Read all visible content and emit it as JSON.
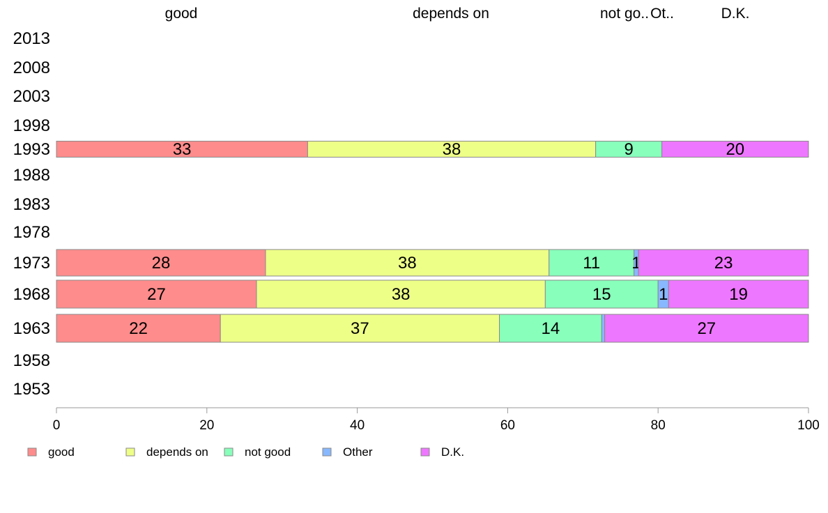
{
  "chart_data": {
    "type": "bar",
    "orientation": "horizontal",
    "stacked": true,
    "categories": [
      "2013",
      "2008",
      "2003",
      "1998",
      "1993",
      "1988",
      "1983",
      "1978",
      "1973",
      "1968",
      "1963",
      "1958",
      "1953"
    ],
    "column_headers": [
      "good",
      "depends on",
      "not go..",
      "Ot..",
      "D.K."
    ],
    "series": [
      {
        "name": "good",
        "color": "#ff8c8c",
        "values": [
          null,
          null,
          null,
          null,
          33.4,
          null,
          null,
          null,
          27.8,
          26.6,
          21.8,
          null,
          null
        ],
        "labels": [
          "",
          "",
          "",
          "",
          "33",
          "",
          "",
          "",
          "28",
          "27",
          "22",
          "",
          ""
        ]
      },
      {
        "name": "depends on",
        "color": "#eeff88",
        "values": [
          null,
          null,
          null,
          null,
          38.3,
          null,
          null,
          null,
          37.7,
          38.4,
          37.1,
          null,
          null
        ],
        "labels": [
          "",
          "",
          "",
          "",
          "38",
          "",
          "",
          "",
          "38",
          "38",
          "37",
          "",
          ""
        ]
      },
      {
        "name": "not good",
        "color": "#88ffbb",
        "values": [
          null,
          null,
          null,
          null,
          8.8,
          null,
          null,
          null,
          11.3,
          15.0,
          13.6,
          null,
          null
        ],
        "labels": [
          "",
          "",
          "",
          "",
          "9",
          "",
          "",
          "",
          "11",
          "15",
          "14",
          "",
          ""
        ]
      },
      {
        "name": "Other",
        "color": "#88b8ff",
        "values": [
          null,
          null,
          null,
          null,
          0.0,
          null,
          null,
          null,
          0.6,
          1.4,
          0.4,
          null,
          null
        ],
        "labels": [
          "",
          "",
          "",
          "",
          "",
          "",
          "",
          "",
          "1",
          "1",
          "",
          "",
          ""
        ]
      },
      {
        "name": "D.K.",
        "color": "#ee77ff",
        "values": [
          null,
          null,
          null,
          null,
          19.5,
          null,
          null,
          null,
          22.6,
          18.6,
          27.1,
          null,
          null
        ],
        "labels": [
          "",
          "",
          "",
          "",
          "20",
          "",
          "",
          "",
          "23",
          "19",
          "27",
          "",
          ""
        ]
      }
    ],
    "xlim": [
      0,
      100
    ],
    "xticks": [
      "0",
      "20",
      "40",
      "60",
      "80",
      "100"
    ],
    "legend": {
      "position": "bottom",
      "entries": [
        "good",
        "depends on",
        "not good",
        "Other",
        "D.K."
      ]
    },
    "grid": false,
    "title": "",
    "xlabel": "",
    "ylabel": ""
  }
}
